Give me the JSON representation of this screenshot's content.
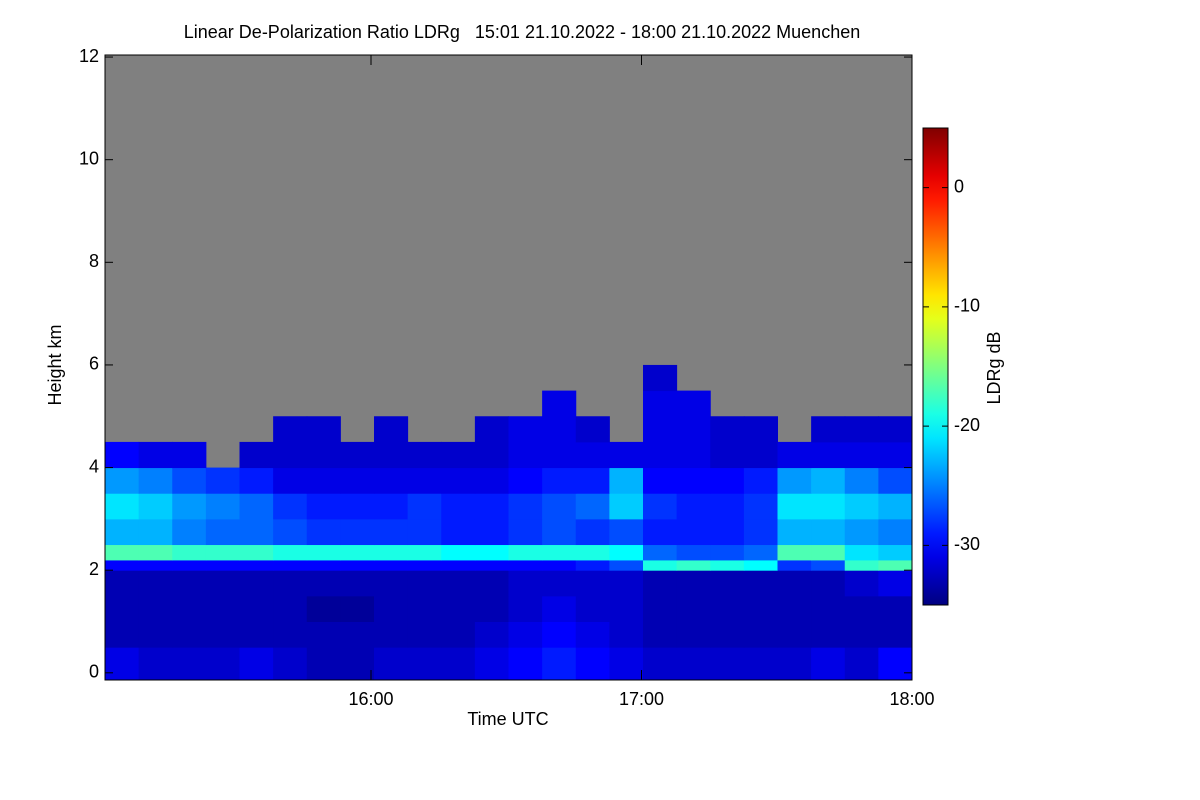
{
  "chart_data": {
    "type": "heatmap",
    "title": "Linear De-Polarization Ratio LDRg   15:01 21.10.2022 - 18:00 21.10.2022 Muenchen",
    "x_label": "Time UTC",
    "y_label": "Height km",
    "colorbar_label": "LDRg dB",
    "xlim": [
      15.0167,
      18.0
    ],
    "xticks": [
      {
        "value": 16,
        "label": "16:00"
      },
      {
        "value": 17,
        "label": "17:00"
      },
      {
        "value": 18,
        "label": "18:00"
      }
    ],
    "ylim": [
      -0.14,
      12.04
    ],
    "yticks": [
      0,
      2,
      4,
      6,
      8,
      10,
      12
    ],
    "clim": [
      -35,
      5
    ],
    "cticks": [
      0,
      -10,
      -20,
      -30
    ],
    "colormap": "jet",
    "missing_color": "#808080",
    "ybins": [
      -0.14,
      0.5,
      1,
      1.5,
      2,
      2.2,
      2.5,
      3,
      3.5,
      4,
      4.5,
      5,
      5.5,
      6
    ],
    "z": [
      [
        -31,
        -32,
        -32,
        -32,
        -31,
        -32,
        -33,
        -33,
        -32,
        -32,
        -32,
        -31,
        -30,
        -29,
        -30,
        -31,
        -32,
        -32,
        -32,
        -32,
        -32,
        -31,
        -32,
        -30
      ],
      [
        -33,
        -33,
        -33,
        -33,
        -33,
        -33,
        -33,
        -33,
        -33,
        -33,
        -33,
        -32,
        -31,
        -30,
        -31,
        -32,
        -33,
        -33,
        -33,
        -33,
        -33,
        -33,
        -33,
        -33
      ],
      [
        -33,
        -33,
        -33,
        -33,
        -33,
        -33,
        -34,
        -34,
        -33,
        -33,
        -33,
        -33,
        -32,
        -31,
        -32,
        -32,
        -33,
        -33,
        -33,
        -33,
        -33,
        -33,
        -33,
        -33
      ],
      [
        -33,
        -33,
        -33,
        -33,
        -33,
        -33,
        -33,
        -33,
        -33,
        -33,
        -33,
        -33,
        -32,
        -32,
        -32,
        -32,
        -33,
        -33,
        -33,
        -33,
        -33,
        -33,
        -32,
        -31
      ],
      [
        -30,
        -30,
        -30,
        -30,
        -30,
        -30,
        -30,
        -30,
        -30,
        -30,
        -30,
        -30,
        -30,
        -30,
        -29,
        -27,
        -19,
        -18,
        -19,
        -20,
        -28,
        -27,
        -18,
        -17
      ],
      [
        -17,
        -17,
        -18,
        -18,
        -18,
        -19,
        -19,
        -19,
        -19,
        -19,
        -20,
        -20,
        -19,
        -19,
        -19,
        -20,
        -26,
        -27,
        -27,
        -26,
        -17,
        -17,
        -21,
        -22
      ],
      [
        -23,
        -23,
        -25,
        -26,
        -26,
        -27,
        -28,
        -28,
        -28,
        -28,
        -29,
        -29,
        -28,
        -27,
        -28,
        -27,
        -29,
        -29,
        -29,
        -28,
        -23,
        -23,
        -24,
        -25
      ],
      [
        -21,
        -22,
        -24,
        -25,
        -26,
        -28,
        -29,
        -29,
        -29,
        -28,
        -29,
        -29,
        -28,
        -27,
        -26,
        -22,
        -28,
        -29,
        -29,
        -28,
        -21,
        -21,
        -22,
        -23
      ],
      [
        -24,
        -25,
        -27,
        -28,
        -29,
        -31,
        -31,
        -31,
        -31,
        -31,
        -31,
        -31,
        -30,
        -29,
        -29,
        -23,
        -30,
        -30,
        -30,
        -29,
        -24,
        -23,
        -25,
        -27
      ],
      [
        -30,
        -31,
        -31,
        null,
        -32,
        -32,
        -32,
        -32,
        -32,
        -32,
        -32,
        -32,
        -31,
        -31,
        -31,
        -31,
        -31,
        -31,
        -32,
        -32,
        -31,
        -31,
        -31,
        -31
      ],
      [
        null,
        null,
        null,
        null,
        null,
        -32,
        -32,
        null,
        -32,
        null,
        null,
        -32,
        -31,
        -31,
        -32,
        null,
        -31,
        -31,
        -32,
        -32,
        null,
        -32,
        -32,
        -32
      ],
      [
        null,
        null,
        null,
        null,
        null,
        null,
        null,
        null,
        null,
        null,
        null,
        null,
        null,
        -31,
        null,
        null,
        -31,
        -31,
        null,
        null,
        null,
        null,
        null,
        null
      ],
      [
        null,
        null,
        null,
        null,
        null,
        null,
        null,
        null,
        null,
        null,
        null,
        null,
        null,
        null,
        null,
        null,
        -32,
        null,
        null,
        null,
        null,
        null,
        null,
        null
      ]
    ]
  }
}
